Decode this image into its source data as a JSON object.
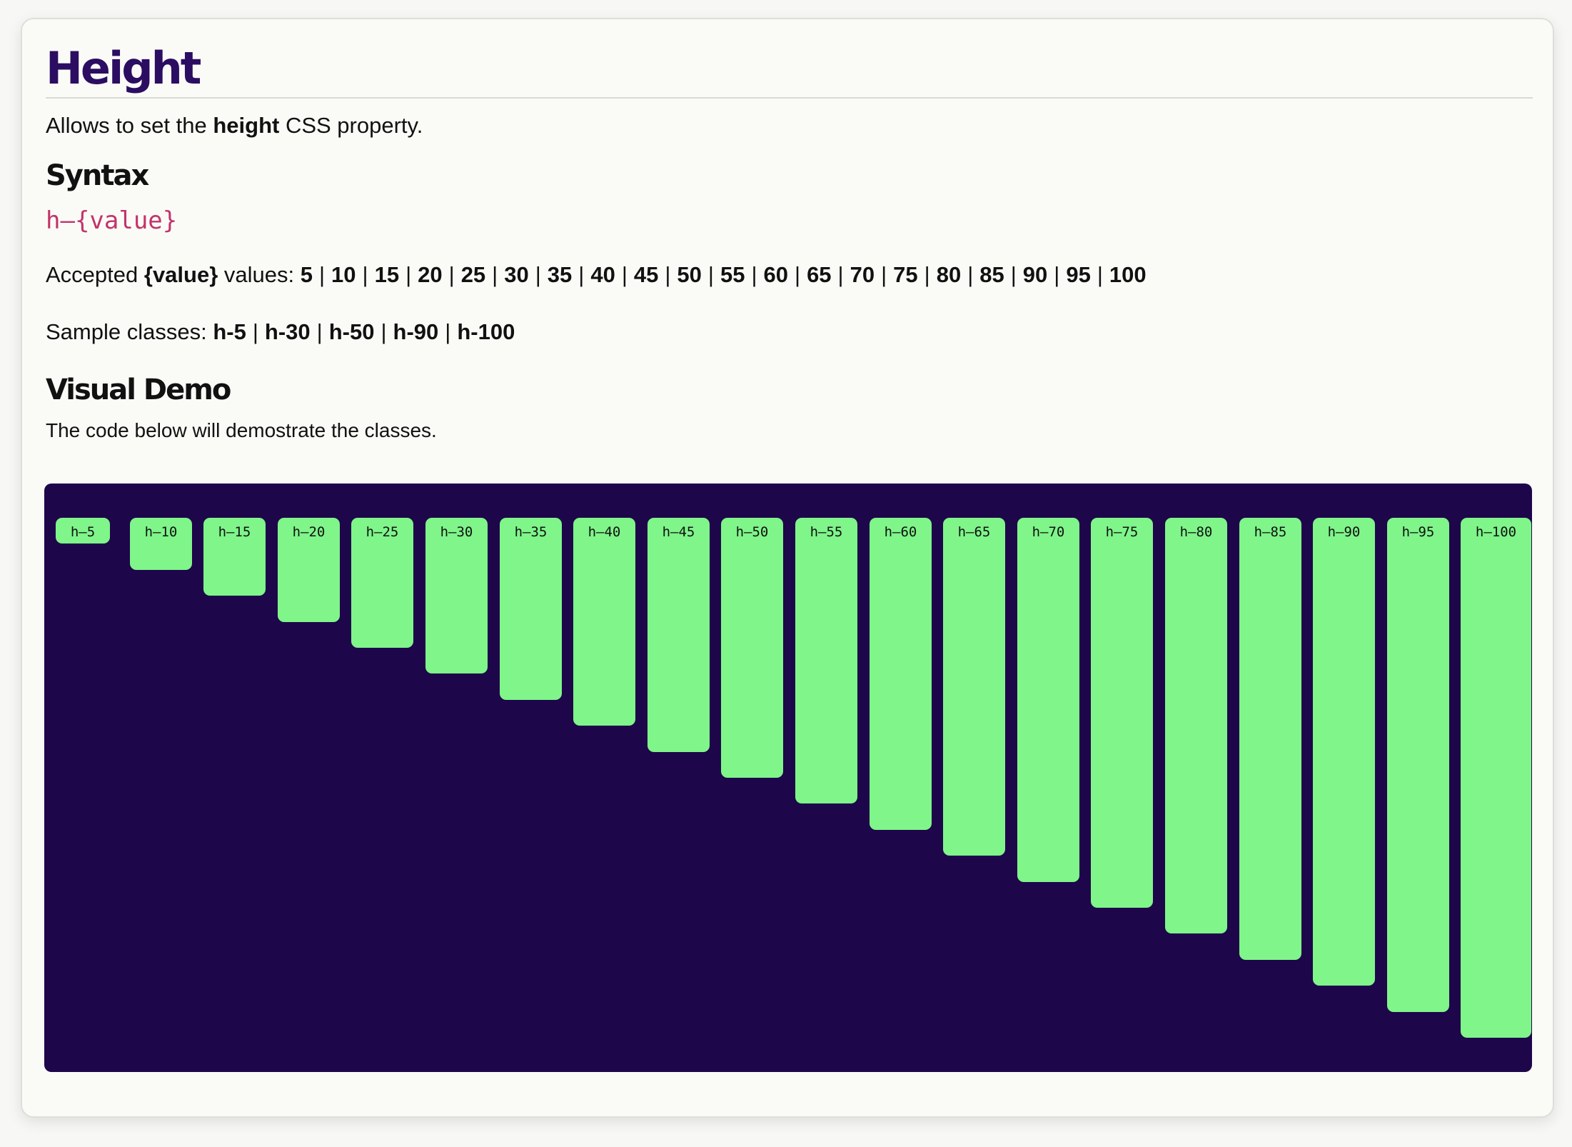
{
  "title": "Height",
  "intro": {
    "prefix": "Allows to set the ",
    "bold": "height",
    "suffix": " CSS property."
  },
  "syntax": {
    "heading": "Syntax",
    "code": "h–{value}",
    "accepted_prefix": "Accepted ",
    "accepted_bold": "{value}",
    "accepted_suffix": " values: ",
    "accepted_values": [
      "5",
      "10",
      "15",
      "20",
      "25",
      "30",
      "35",
      "40",
      "45",
      "50",
      "55",
      "60",
      "65",
      "70",
      "75",
      "80",
      "85",
      "90",
      "95",
      "100"
    ],
    "sample_prefix": "Sample classes: ",
    "sample_classes": [
      "h-5",
      "h-30",
      "h-50",
      "h-90",
      "h-100"
    ]
  },
  "demo": {
    "heading": "Visual Demo",
    "description": "The code below will demostrate the classes.",
    "boxes": [
      {
        "label": "h–5",
        "value": 5
      },
      {
        "label": "h–10",
        "value": 10
      },
      {
        "label": "h–15",
        "value": 15
      },
      {
        "label": "h–20",
        "value": 20
      },
      {
        "label": "h–25",
        "value": 25
      },
      {
        "label": "h–30",
        "value": 30
      },
      {
        "label": "h–35",
        "value": 35
      },
      {
        "label": "h–40",
        "value": 40
      },
      {
        "label": "h–45",
        "value": 45
      },
      {
        "label": "h–50",
        "value": 50
      },
      {
        "label": "h–55",
        "value": 55
      },
      {
        "label": "h–60",
        "value": 60
      },
      {
        "label": "h–65",
        "value": 65
      },
      {
        "label": "h–70",
        "value": 70
      },
      {
        "label": "h–75",
        "value": 75
      },
      {
        "label": "h–80",
        "value": 80
      },
      {
        "label": "h–85",
        "value": 85
      },
      {
        "label": "h–90",
        "value": 90
      },
      {
        "label": "h–95",
        "value": 95
      },
      {
        "label": "h–100",
        "value": 100
      }
    ]
  },
  "colors": {
    "title": "#2b0d62",
    "code": "#c2346a",
    "demo_background": "#1e064a",
    "box": "#7ff58a"
  }
}
